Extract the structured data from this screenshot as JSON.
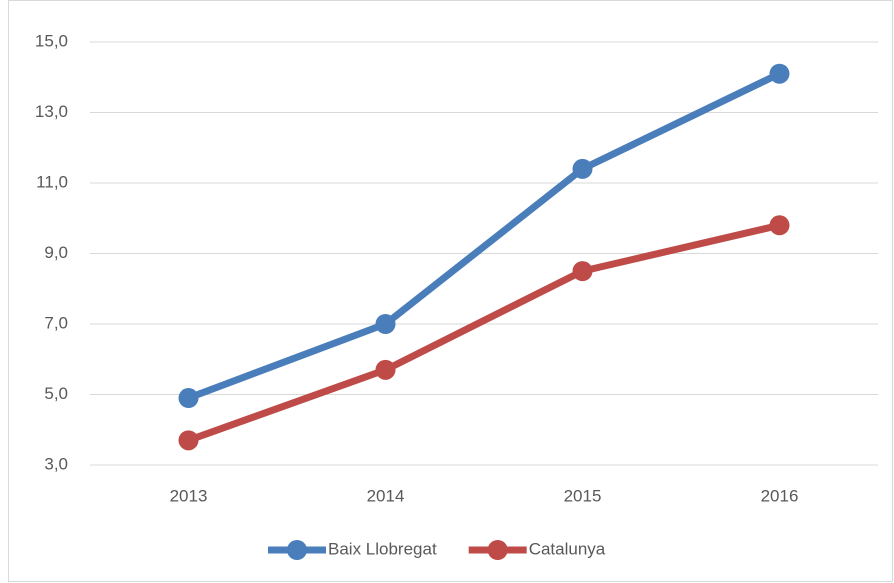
{
  "chart_data": {
    "type": "line",
    "categories": [
      "2013",
      "2014",
      "2015",
      "2016"
    ],
    "series": [
      {
        "name": "Baix Llobregat",
        "color": "#4a7ebb",
        "values": [
          4.9,
          7.0,
          11.4,
          14.1
        ]
      },
      {
        "name": "Catalunya",
        "color": "#be4b48",
        "values": [
          3.7,
          5.7,
          8.5,
          9.8
        ]
      }
    ],
    "ylim": [
      3,
      15
    ],
    "yticks": [
      {
        "value": 3,
        "label": "3,0"
      },
      {
        "value": 5,
        "label": "5,0"
      },
      {
        "value": 7,
        "label": "7,0"
      },
      {
        "value": 9,
        "label": "9,0"
      },
      {
        "value": 11,
        "label": "11,0"
      },
      {
        "value": 13,
        "label": "13,0"
      },
      {
        "value": 15,
        "label": "15,0"
      }
    ],
    "grid": true,
    "legend": "bottom"
  }
}
